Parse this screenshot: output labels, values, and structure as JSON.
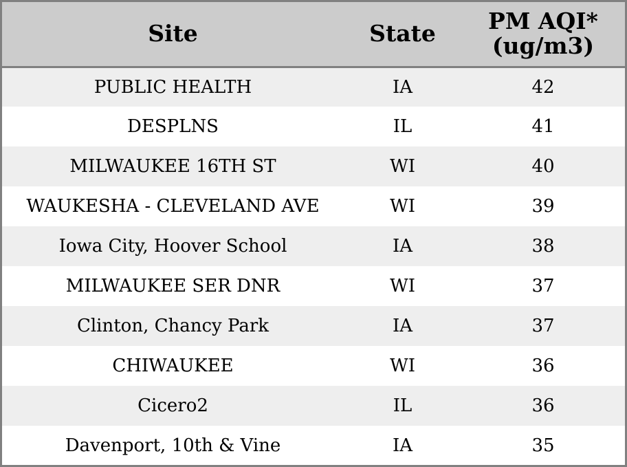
{
  "chart_data": {
    "type": "table",
    "columns": [
      "Site",
      "State",
      "PM AQI*",
      "(ug/m3)"
    ],
    "rows": [
      {
        "site": "PUBLIC HEALTH",
        "state": "IA",
        "pm_aqi": 42
      },
      {
        "site": "DESPLNS",
        "state": "IL",
        "pm_aqi": 41
      },
      {
        "site": "MILWAUKEE 16TH ST",
        "state": "WI",
        "pm_aqi": 40
      },
      {
        "site": "WAUKESHA - CLEVELAND AVE",
        "state": "WI",
        "pm_aqi": 39
      },
      {
        "site": "Iowa City, Hoover School",
        "state": "IA",
        "pm_aqi": 38
      },
      {
        "site": "MILWAUKEE SER DNR",
        "state": "WI",
        "pm_aqi": 37
      },
      {
        "site": "Clinton, Chancy Park",
        "state": "IA",
        "pm_aqi": 37
      },
      {
        "site": "CHIWAUKEE",
        "state": "WI",
        "pm_aqi": 36
      },
      {
        "site": "Cicero2",
        "state": "IL",
        "pm_aqi": 36
      },
      {
        "site": "Davenport, 10th & Vine",
        "state": "IA",
        "pm_aqi": 35
      }
    ]
  },
  "colors": {
    "header_bg": "#cccccc",
    "row_alt_bg": "#eeeeee",
    "row_bg": "#ffffff",
    "border": "#808080"
  }
}
